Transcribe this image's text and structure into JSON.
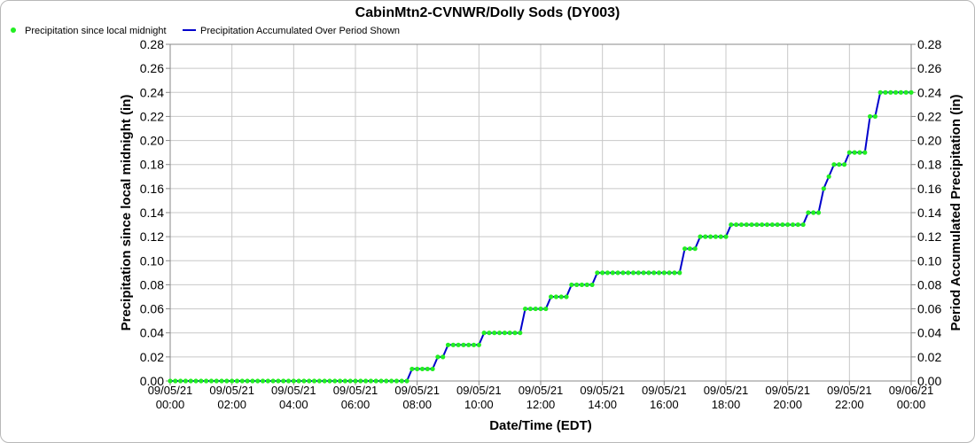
{
  "chart_data": {
    "type": "line",
    "title": "CabinMtn2-CVNWR/Dolly Sods (DY003)",
    "xlabel": "Date/Time (EDT)",
    "ylabel_left": "Precipitation since local midnight (in)",
    "ylabel_right": "Period Accumulated Precipitation (in)",
    "ylim": [
      0,
      0.28
    ],
    "y_ticks": [
      "0.00",
      "0.02",
      "0.04",
      "0.06",
      "0.08",
      "0.10",
      "0.12",
      "0.14",
      "0.16",
      "0.18",
      "0.20",
      "0.22",
      "0.24",
      "0.26",
      "0.28"
    ],
    "xlim_hours": [
      0,
      24
    ],
    "x_ticks": [
      {
        "hour": 0,
        "date": "09/05/21",
        "time": "00:00"
      },
      {
        "hour": 2,
        "date": "09/05/21",
        "time": "02:00"
      },
      {
        "hour": 4,
        "date": "09/05/21",
        "time": "04:00"
      },
      {
        "hour": 6,
        "date": "09/05/21",
        "time": "06:00"
      },
      {
        "hour": 8,
        "date": "09/05/21",
        "time": "08:00"
      },
      {
        "hour": 10,
        "date": "09/05/21",
        "time": "10:00"
      },
      {
        "hour": 12,
        "date": "09/05/21",
        "time": "12:00"
      },
      {
        "hour": 14,
        "date": "09/05/21",
        "time": "14:00"
      },
      {
        "hour": 16,
        "date": "09/05/21",
        "time": "16:00"
      },
      {
        "hour": 18,
        "date": "09/05/21",
        "time": "18:00"
      },
      {
        "hour": 20,
        "date": "09/05/21",
        "time": "20:00"
      },
      {
        "hour": 22,
        "date": "09/05/21",
        "time": "22:00"
      },
      {
        "hour": 24,
        "date": "09/06/21",
        "time": "00:00"
      }
    ],
    "grid": true,
    "legend_position": "top-left",
    "series": [
      {
        "name": "Precipitation since local midnight",
        "style": "points",
        "color": "#22ee22"
      },
      {
        "name": "Precipitation Accumulated Over Period Shown",
        "style": "line",
        "color": "#0000cc"
      }
    ],
    "interval_minutes": 10,
    "steps": [
      {
        "from_time": "00:00",
        "value": 0.0
      },
      {
        "from_time": "07:50",
        "value": 0.01
      },
      {
        "from_time": "08:40",
        "value": 0.02
      },
      {
        "from_time": "09:00",
        "value": 0.03
      },
      {
        "from_time": "10:10",
        "value": 0.04
      },
      {
        "from_time": "11:30",
        "value": 0.06
      },
      {
        "from_time": "12:20",
        "value": 0.07
      },
      {
        "from_time": "13:00",
        "value": 0.08
      },
      {
        "from_time": "13:50",
        "value": 0.09
      },
      {
        "from_time": "16:40",
        "value": 0.11
      },
      {
        "from_time": "17:10",
        "value": 0.12
      },
      {
        "from_time": "18:10",
        "value": 0.13
      },
      {
        "from_time": "20:40",
        "value": 0.14
      },
      {
        "from_time": "21:10",
        "value": 0.16
      },
      {
        "from_time": "21:20",
        "value": 0.17
      },
      {
        "from_time": "21:30",
        "value": 0.18
      },
      {
        "from_time": "22:00",
        "value": 0.19
      },
      {
        "from_time": "22:40",
        "value": 0.22
      },
      {
        "from_time": "23:00",
        "value": 0.24
      }
    ]
  }
}
